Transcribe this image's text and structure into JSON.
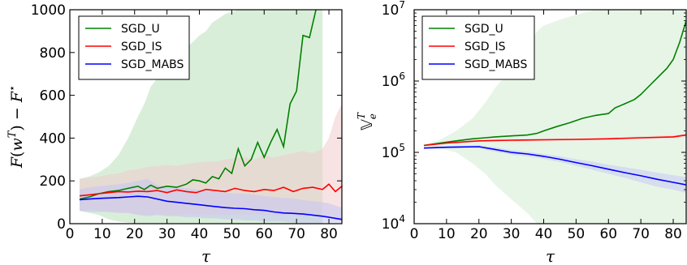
{
  "chart_data": [
    {
      "type": "line",
      "xlabel": "τ",
      "ylabel": "F(w^T) − F*",
      "xlim": [
        0,
        84
      ],
      "ylim": [
        0,
        1000
      ],
      "yscale": "linear",
      "xticks": [
        0,
        10,
        20,
        30,
        40,
        50,
        60,
        70,
        80
      ],
      "yticks": [
        0,
        200,
        400,
        600,
        800,
        1000
      ],
      "xtick_labels": [
        "0",
        "10",
        "20",
        "30",
        "40",
        "50",
        "60",
        "70",
        "80"
      ],
      "ytick_labels": [
        "0",
        "200",
        "400",
        "600",
        "800",
        "1000"
      ],
      "legend": "top-left",
      "grid": false,
      "series": [
        {
          "name": "SGD_U",
          "color": "#008000",
          "band_color": "#b9e0b9",
          "x": [
            3,
            6,
            9,
            12,
            15,
            18,
            21,
            23,
            25,
            27,
            30,
            33,
            36,
            38,
            40,
            42,
            44,
            46,
            48,
            50,
            52,
            54,
            56,
            58,
            60,
            62,
            64,
            66,
            68,
            70,
            72,
            74,
            76,
            78
          ],
          "y": [
            115,
            125,
            140,
            150,
            155,
            165,
            175,
            160,
            180,
            165,
            175,
            170,
            185,
            205,
            200,
            190,
            220,
            210,
            260,
            235,
            350,
            270,
            300,
            380,
            310,
            380,
            440,
            360,
            560,
            620,
            880,
            870,
            1000,
            1030
          ],
          "band_upper": [
            210,
            220,
            240,
            270,
            320,
            400,
            500,
            560,
            640,
            680,
            720,
            780,
            820,
            850,
            880,
            900,
            940,
            960,
            980,
            990,
            1000,
            1000,
            1000,
            1000,
            1000,
            1000,
            1000,
            1000,
            1000,
            1000,
            1000,
            1000,
            1000,
            1000
          ],
          "band_lower": [
            60,
            50,
            40,
            20,
            10,
            5,
            0,
            0,
            0,
            0,
            0,
            0,
            0,
            0,
            0,
            0,
            0,
            0,
            0,
            0,
            0,
            0,
            0,
            0,
            0,
            0,
            0,
            0,
            0,
            0,
            0,
            0,
            0,
            0
          ]
        },
        {
          "name": "SGD_IS",
          "color": "#ff0000",
          "band_color": "#f0cccc",
          "x": [
            3,
            6,
            9,
            12,
            15,
            18,
            21,
            24,
            27,
            30,
            33,
            36,
            39,
            42,
            45,
            48,
            51,
            54,
            57,
            60,
            63,
            66,
            69,
            72,
            75,
            78,
            80,
            82,
            84
          ],
          "y": [
            130,
            135,
            140,
            145,
            150,
            148,
            152,
            150,
            155,
            145,
            158,
            150,
            145,
            160,
            155,
            150,
            165,
            155,
            150,
            160,
            155,
            170,
            150,
            165,
            170,
            160,
            185,
            150,
            175
          ],
          "band_upper": [
            210,
            215,
            220,
            230,
            235,
            250,
            255,
            265,
            270,
            275,
            270,
            280,
            285,
            290,
            290,
            300,
            305,
            310,
            300,
            320,
            310,
            320,
            330,
            340,
            330,
            350,
            400,
            500,
            560
          ],
          "band_lower": [
            60,
            65,
            60,
            55,
            50,
            50,
            45,
            40,
            45,
            40,
            40,
            45,
            40,
            40,
            45,
            40,
            45,
            40,
            45,
            40,
            40,
            40,
            45,
            35,
            40,
            40,
            30,
            20,
            10
          ]
        },
        {
          "name": "SGD_MABS",
          "color": "#0000ff",
          "band_color": "#c4c4f2",
          "x": [
            3,
            6,
            9,
            12,
            15,
            18,
            21,
            24,
            27,
            30,
            33,
            36,
            39,
            42,
            45,
            48,
            51,
            54,
            57,
            60,
            63,
            66,
            69,
            72,
            75,
            78,
            80,
            82,
            84
          ],
          "y": [
            112,
            115,
            118,
            120,
            122,
            125,
            128,
            125,
            115,
            105,
            100,
            95,
            90,
            85,
            80,
            75,
            72,
            70,
            65,
            62,
            55,
            50,
            48,
            45,
            40,
            35,
            30,
            25,
            20
          ],
          "band_upper": [
            160,
            170,
            175,
            180,
            185,
            190,
            200,
            210,
            180,
            175,
            170,
            165,
            160,
            155,
            150,
            145,
            140,
            140,
            135,
            130,
            125,
            120,
            118,
            110,
            105,
            100,
            95,
            85,
            75
          ],
          "band_lower": [
            60,
            55,
            55,
            55,
            50,
            50,
            40,
            35,
            40,
            35,
            35,
            30,
            30,
            25,
            25,
            20,
            20,
            15,
            15,
            10,
            10,
            10,
            5,
            5,
            5,
            5,
            5,
            5,
            5
          ]
        }
      ]
    },
    {
      "type": "line",
      "xlabel": "τ",
      "ylabel": "𝕍_e^T",
      "xlim": [
        0,
        84
      ],
      "ylim": [
        10000,
        10000000
      ],
      "yscale": "log",
      "xticks": [
        0,
        10,
        20,
        30,
        40,
        50,
        60,
        70,
        80
      ],
      "yticks": [
        10000,
        100000,
        1000000,
        10000000
      ],
      "xtick_labels": [
        "0",
        "10",
        "20",
        "30",
        "40",
        "50",
        "60",
        "70",
        "80"
      ],
      "ytick_labels": [
        [
          "10",
          "4"
        ],
        [
          "10",
          "5"
        ],
        [
          "10",
          "6"
        ],
        [
          "10",
          "7"
        ]
      ],
      "legend": "top-left",
      "grid": false,
      "series": [
        {
          "name": "SGD_U",
          "color": "#008000",
          "band_color": "#d3ecd3",
          "x": [
            3,
            8,
            13,
            18,
            22,
            25,
            30,
            35,
            38,
            40,
            44,
            48,
            52,
            56,
            60,
            62,
            65,
            68,
            70,
            72,
            75,
            78,
            80,
            82,
            84
          ],
          "y": [
            125000,
            135000,
            145000,
            155000,
            160000,
            165000,
            170000,
            175000,
            185000,
            200000,
            230000,
            260000,
            300000,
            330000,
            350000,
            420000,
            480000,
            550000,
            650000,
            800000,
            1100000,
            1500000,
            2000000,
            3500000,
            7000000
          ],
          "band_upper": [
            130000,
            150000,
            200000,
            300000,
            500000,
            800000,
            1500000,
            3000000,
            5000000,
            6000000,
            7000000,
            8000000,
            9000000,
            10000000,
            10000000,
            10000000,
            10000000,
            10000000,
            10000000,
            10000000,
            10000000,
            10000000,
            10000000,
            10000000,
            10000000
          ],
          "band_lower": [
            120000,
            115000,
            100000,
            70000,
            50000,
            35000,
            22000,
            14000,
            10000,
            10000,
            10000,
            10000,
            10000,
            10000,
            10000,
            10000,
            10000,
            10000,
            10000,
            10000,
            10000,
            10000,
            10000,
            10000,
            10000
          ]
        },
        {
          "name": "SGD_IS",
          "color": "#ff0000",
          "band_color": "#f3d2d2",
          "x": [
            3,
            10,
            20,
            30,
            40,
            50,
            60,
            70,
            80,
            84
          ],
          "y": [
            125000,
            135000,
            145000,
            148000,
            150000,
            152000,
            155000,
            160000,
            165000,
            175000
          ],
          "band_upper": [
            128000,
            140000,
            150000,
            155000,
            157000,
            158000,
            162000,
            168000,
            175000,
            185000
          ],
          "band_lower": [
            122000,
            130000,
            140000,
            141000,
            143000,
            146000,
            148000,
            152000,
            155000,
            165000
          ]
        },
        {
          "name": "SGD_MABS",
          "color": "#0000ff",
          "band_color": "#c8c8f5",
          "x": [
            3,
            10,
            20,
            25,
            30,
            35,
            40,
            45,
            50,
            55,
            60,
            65,
            70,
            75,
            80,
            84
          ],
          "y": [
            115000,
            118000,
            120000,
            110000,
            100000,
            95000,
            88000,
            80000,
            72000,
            65000,
            58000,
            52000,
            47000,
            42000,
            38000,
            35000
          ],
          "band_upper": [
            118000,
            122000,
            126000,
            118000,
            108000,
            102000,
            95000,
            88000,
            80000,
            74000,
            67000,
            62000,
            57000,
            52000,
            48000,
            45000
          ],
          "band_lower": [
            112000,
            114000,
            114000,
            102000,
            93000,
            88000,
            81000,
            73000,
            65000,
            57000,
            50000,
            44000,
            38000,
            33000,
            30000,
            27000
          ]
        }
      ]
    }
  ]
}
